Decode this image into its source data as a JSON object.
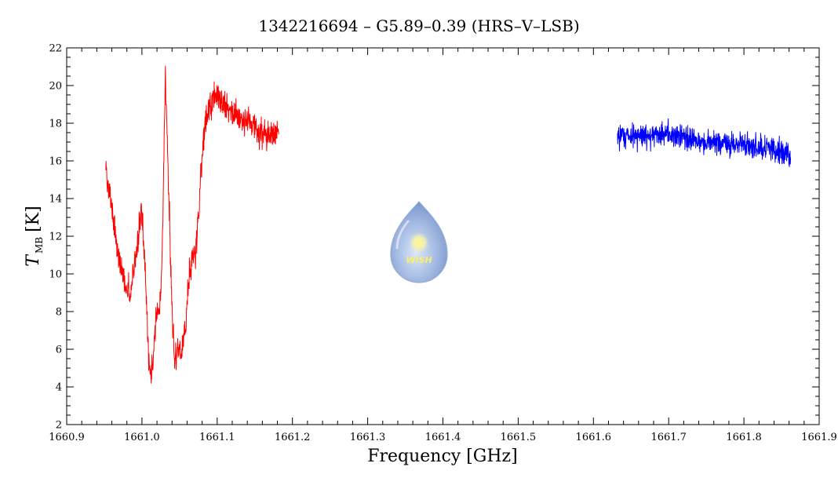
{
  "chart_data": {
    "type": "line",
    "title": "1342216694 – G5.89–0.39 (HRS–V–LSB)",
    "xlabel": "Frequency [GHz]",
    "ylabel_main": "T",
    "ylabel_sub": "MB",
    "ylabel_unit": "[K]",
    "xlim": [
      1660.9,
      1661.9
    ],
    "ylim": [
      2,
      22
    ],
    "x_ticks": [
      "1660.9",
      "1661.0",
      "1661.1",
      "1661.2",
      "1661.3",
      "1661.4",
      "1661.5",
      "1661.6",
      "1661.7",
      "1661.8",
      "1661.9"
    ],
    "y_ticks": [
      "2",
      "4",
      "6",
      "8",
      "10",
      "12",
      "14",
      "16",
      "18",
      "20",
      "22"
    ],
    "grid": false,
    "logo_text": "WISH",
    "series": [
      {
        "color": "#ff0000",
        "x_range": [
          1660.952,
          1661.182
        ],
        "noise": 0.55,
        "profile": [
          [
            1660.952,
            15.2
          ],
          [
            1660.958,
            14.2
          ],
          [
            1660.963,
            12.6
          ],
          [
            1660.97,
            10.8
          ],
          [
            1660.978,
            9.3
          ],
          [
            1660.984,
            9.0
          ],
          [
            1660.99,
            10.4
          ],
          [
            1660.996,
            12.3
          ],
          [
            1660.999,
            13.4
          ],
          [
            1661.003,
            11.2
          ],
          [
            1661.007,
            7.5
          ],
          [
            1661.011,
            4.6
          ],
          [
            1661.015,
            5.6
          ],
          [
            1661.019,
            7.9
          ],
          [
            1661.023,
            8.2
          ],
          [
            1661.026,
            9.6
          ],
          [
            1661.029,
            15.5
          ],
          [
            1661.031,
            20.2
          ],
          [
            1661.033,
            18.6
          ],
          [
            1661.036,
            13.6
          ],
          [
            1661.04,
            8.2
          ],
          [
            1661.043,
            5.2
          ],
          [
            1661.047,
            6.0
          ],
          [
            1661.053,
            5.9
          ],
          [
            1661.058,
            7.2
          ],
          [
            1661.062,
            9.5
          ],
          [
            1661.066,
            10.6
          ],
          [
            1661.071,
            11.1
          ],
          [
            1661.075,
            12.9
          ],
          [
            1661.079,
            15.8
          ],
          [
            1661.084,
            17.9
          ],
          [
            1661.09,
            18.9
          ],
          [
            1661.098,
            19.6
          ],
          [
            1661.11,
            18.9
          ],
          [
            1661.125,
            18.5
          ],
          [
            1661.14,
            18.1
          ],
          [
            1661.155,
            17.6
          ],
          [
            1661.17,
            17.4
          ],
          [
            1661.182,
            17.6
          ]
        ]
      },
      {
        "color": "#0000ff",
        "x_range": [
          1661.632,
          1661.862
        ],
        "noise": 0.45,
        "profile": [
          [
            1661.632,
            17.4
          ],
          [
            1661.66,
            17.3
          ],
          [
            1661.7,
            17.5
          ],
          [
            1661.74,
            17.0
          ],
          [
            1661.78,
            16.9
          ],
          [
            1661.82,
            16.8
          ],
          [
            1661.862,
            16.3
          ]
        ]
      }
    ]
  }
}
